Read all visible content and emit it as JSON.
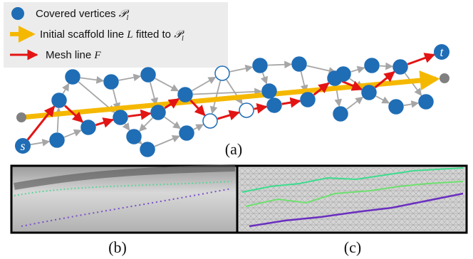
{
  "legend": [
    {
      "text": "Covered vertices",
      "symbol": "𝒫",
      "subscript": "l"
    },
    {
      "text": "Initial scaffold line",
      "symbol": "L",
      "text2": "fitted to",
      "symbol2": "𝒫",
      "subscript2": "l"
    },
    {
      "text": "Mesh line",
      "symbol": "F"
    }
  ],
  "labels": {
    "start": "s",
    "end": "t",
    "a": "(a)",
    "b": "(b)",
    "c": "(c)"
  }
}
